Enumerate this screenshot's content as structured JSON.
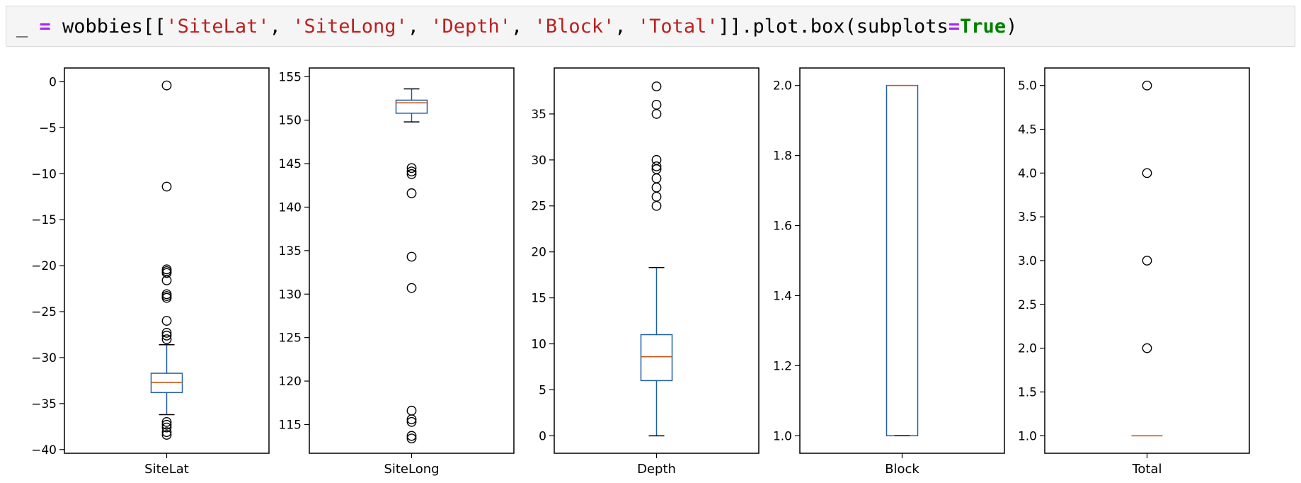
{
  "code": {
    "tokens": [
      {
        "text": "_ ",
        "cls": ""
      },
      {
        "text": "=",
        "cls": "op"
      },
      {
        "text": " wobbies[[",
        "cls": ""
      },
      {
        "text": "'SiteLat'",
        "cls": "str"
      },
      {
        "text": ", ",
        "cls": ""
      },
      {
        "text": "'SiteLong'",
        "cls": "str"
      },
      {
        "text": ", ",
        "cls": ""
      },
      {
        "text": "'Depth'",
        "cls": "str"
      },
      {
        "text": ", ",
        "cls": ""
      },
      {
        "text": "'Block'",
        "cls": "str"
      },
      {
        "text": ", ",
        "cls": ""
      },
      {
        "text": "'Total'",
        "cls": "str"
      },
      {
        "text": "]].plot.box(subplots",
        "cls": ""
      },
      {
        "text": "=",
        "cls": "op"
      },
      {
        "text": "True",
        "cls": "kw"
      },
      {
        "text": ")",
        "cls": ""
      }
    ]
  },
  "colors": {
    "box": "#1f5fa8",
    "median": "#c8581b",
    "outlier": "#000000",
    "axis": "#000000"
  },
  "chart_data": [
    {
      "type": "box",
      "name": "SiteLat",
      "ylim": [
        -40.4,
        1.5
      ],
      "yticks": [
        0,
        -5,
        -10,
        -15,
        -20,
        -25,
        -30,
        -35,
        -40
      ],
      "ytick_labels": [
        "0",
        "−5",
        "−10",
        "−15",
        "−20",
        "−25",
        "−30",
        "−35",
        "−40"
      ],
      "q1": -33.8,
      "median": -32.7,
      "q3": -31.7,
      "whisker_low": -36.2,
      "whisker_high": -28.6,
      "outliers": [
        -0.4,
        -11.4,
        -20.4,
        -20.6,
        -20.8,
        -21.6,
        -23.1,
        -23.3,
        -23.5,
        -26.0,
        -27.3,
        -27.6,
        -28.0,
        -37.0,
        -37.3,
        -37.6,
        -38.1,
        -38.4
      ]
    },
    {
      "type": "box",
      "name": "SiteLong",
      "ylim": [
        111.7,
        156.0
      ],
      "yticks": [
        115,
        120,
        125,
        130,
        135,
        140,
        145,
        150,
        155
      ],
      "ytick_labels": [
        "115",
        "120",
        "125",
        "130",
        "135",
        "140",
        "145",
        "150",
        "155"
      ],
      "q1": 150.8,
      "median": 152.0,
      "q3": 152.3,
      "whisker_low": 149.8,
      "whisker_high": 153.6,
      "outliers": [
        144.5,
        144.1,
        143.8,
        141.6,
        134.3,
        130.7,
        116.6,
        115.6,
        115.3,
        113.7,
        113.4
      ]
    },
    {
      "type": "box",
      "name": "Depth",
      "ylim": [
        -1.9,
        40.0
      ],
      "yticks": [
        0,
        5,
        10,
        15,
        20,
        25,
        30,
        35
      ],
      "ytick_labels": [
        "0",
        "5",
        "10",
        "15",
        "20",
        "25",
        "30",
        "35"
      ],
      "q1": 6.0,
      "median": 8.6,
      "q3": 11.0,
      "whisker_low": 0.0,
      "whisker_high": 18.3,
      "outliers": [
        38.0,
        36.0,
        35.0,
        30.0,
        29.3,
        29.0,
        28.0,
        27.0,
        26.0,
        25.0
      ]
    },
    {
      "type": "box",
      "name": "Block",
      "ylim": [
        0.95,
        2.05
      ],
      "yticks": [
        1.0,
        1.2,
        1.4,
        1.6,
        1.8,
        2.0
      ],
      "ytick_labels": [
        "1.0",
        "1.2",
        "1.4",
        "1.6",
        "1.8",
        "2.0"
      ],
      "q1": 1.0,
      "median": 2.0,
      "q3": 2.0,
      "whisker_low": 1.0,
      "whisker_high": 2.0,
      "outliers": []
    },
    {
      "type": "box",
      "name": "Total",
      "ylim": [
        0.8,
        5.2
      ],
      "yticks": [
        1.0,
        1.5,
        2.0,
        2.5,
        3.0,
        3.5,
        4.0,
        4.5,
        5.0
      ],
      "ytick_labels": [
        "1.0",
        "1.5",
        "2.0",
        "2.5",
        "3.0",
        "3.5",
        "4.0",
        "4.5",
        "5.0"
      ],
      "q1": 1.0,
      "median": 1.0,
      "q3": 1.0,
      "whisker_low": 1.0,
      "whisker_high": 1.0,
      "outliers": [
        5.0,
        4.0,
        3.0,
        2.0
      ]
    }
  ]
}
